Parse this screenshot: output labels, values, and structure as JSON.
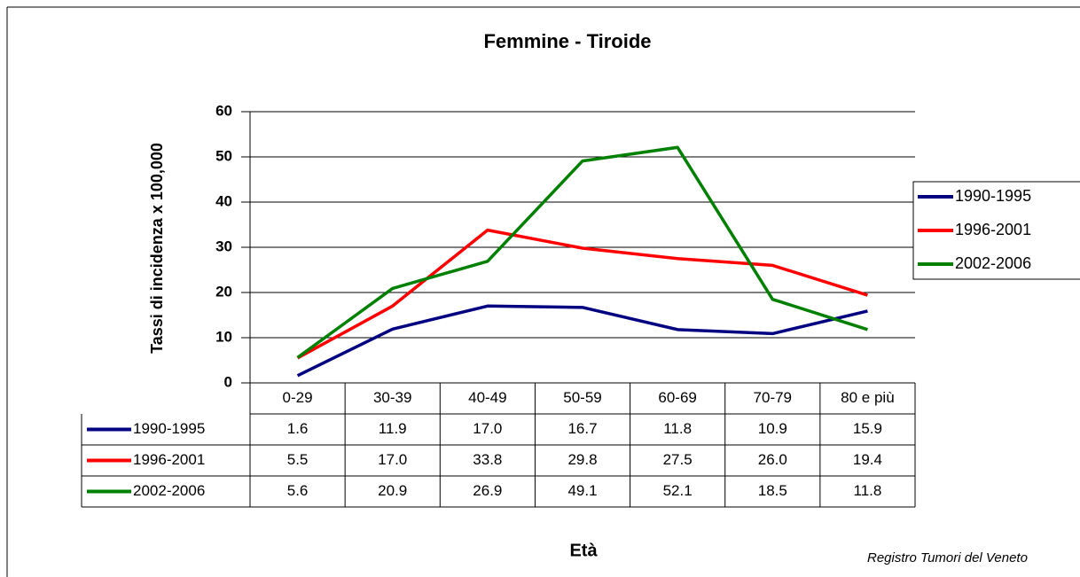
{
  "chart_data": {
    "type": "line",
    "title": "Femmine - Tiroide",
    "y_label": "Tassi di incidenza x 100,000",
    "x_label": "Età",
    "source": "Registro Tumori del Veneto",
    "categories": [
      "0-29",
      "30-39",
      "40-49",
      "50-59",
      "60-69",
      "70-79",
      "80 e più"
    ],
    "series": [
      {
        "name": "1990-1995",
        "color": "#000080",
        "values": [
          1.6,
          11.9,
          17.0,
          16.7,
          11.8,
          10.9,
          15.9
        ],
        "value_labels": [
          "1.6",
          "11.9",
          "17.0",
          "16.7",
          "11.8",
          "10.9",
          "15.9"
        ]
      },
      {
        "name": "1996-2001",
        "color": "#ff0000",
        "values": [
          5.5,
          17.0,
          33.8,
          29.8,
          27.5,
          26.0,
          19.4
        ],
        "value_labels": [
          "5.5",
          "17.0",
          "33.8",
          "29.8",
          "27.5",
          "26.0",
          "19.4"
        ]
      },
      {
        "name": "2002-2006",
        "color": "#008000",
        "values": [
          5.6,
          20.9,
          26.9,
          49.1,
          52.1,
          18.5,
          11.8
        ],
        "value_labels": [
          "5.6",
          "20.9",
          "26.9",
          "49.1",
          "52.1",
          "18.5",
          "11.8"
        ]
      }
    ],
    "ylim": [
      0,
      60
    ],
    "yticks": [
      0,
      10,
      20,
      30,
      40,
      50,
      60
    ],
    "grid": true,
    "legend": "right"
  }
}
